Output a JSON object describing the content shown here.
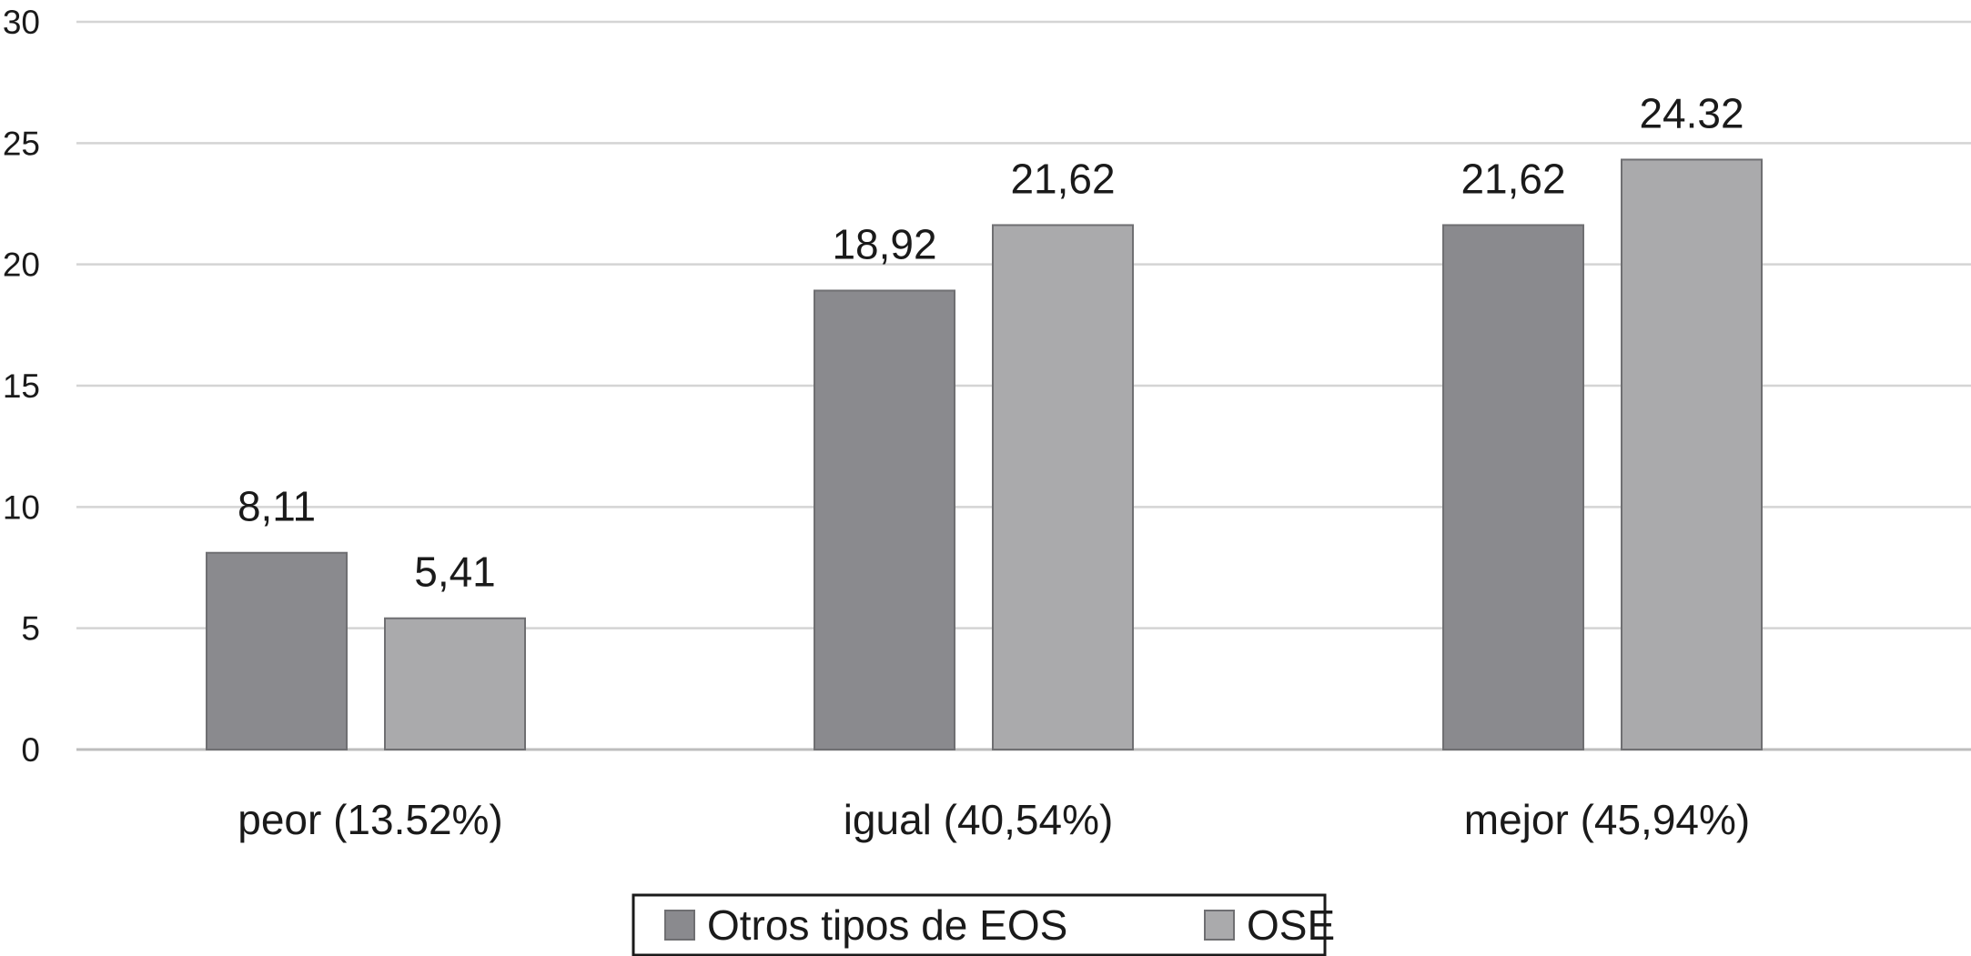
{
  "chart_data": {
    "type": "bar",
    "categories": [
      "peor (13.52%)",
      "igual (40,54%)",
      "mejor (45,94%)"
    ],
    "series": [
      {
        "name": "Otros tipos de EOS",
        "values": [
          8.11,
          18.92,
          21.62
        ],
        "labels": [
          "8,11",
          "18,92",
          "21,62"
        ],
        "color": "#8a8a8e"
      },
      {
        "name": "OSE",
        "values": [
          5.41,
          21.62,
          24.32
        ],
        "labels": [
          "5,41",
          "21,62",
          "24.32"
        ],
        "color": "#aaaaac"
      }
    ],
    "yticks": [
      "0",
      "5",
      "10",
      "15",
      "20",
      "25",
      "30"
    ],
    "ylim": [
      0,
      30
    ],
    "grid": true,
    "legend": "bottom-center",
    "title": "",
    "xlabel": "",
    "ylabel": ""
  }
}
